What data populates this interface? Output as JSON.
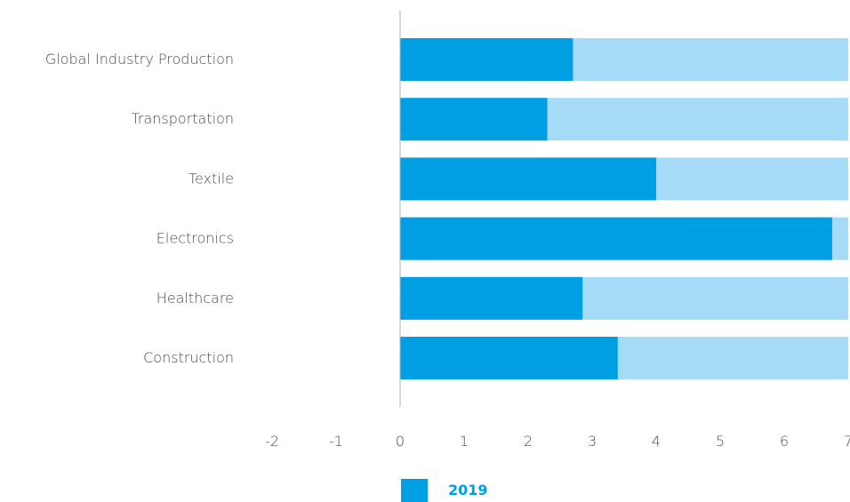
{
  "chart_data": {
    "type": "bar",
    "orientation": "horizontal",
    "categories": [
      "Global Industry Production",
      "Transportation",
      "Textile",
      "Electronics",
      "Healthcare",
      "Construction"
    ],
    "series": [
      {
        "name": "2019",
        "values": [
          2.7,
          2.3,
          4.0,
          6.75,
          2.85,
          3.4
        ],
        "color": "#009fe3"
      }
    ],
    "background_track_color": "#a5dbf7",
    "background_track_extent": 7.0,
    "xlim": [
      -2,
      7
    ],
    "xticks": [
      -2,
      -1,
      0,
      1,
      2,
      3,
      4,
      5,
      6,
      7
    ],
    "grid": false,
    "legend": {
      "placement": "bottom-center"
    },
    "axis_color": "#b0b0b0",
    "text_color": "#4a4a4a"
  }
}
